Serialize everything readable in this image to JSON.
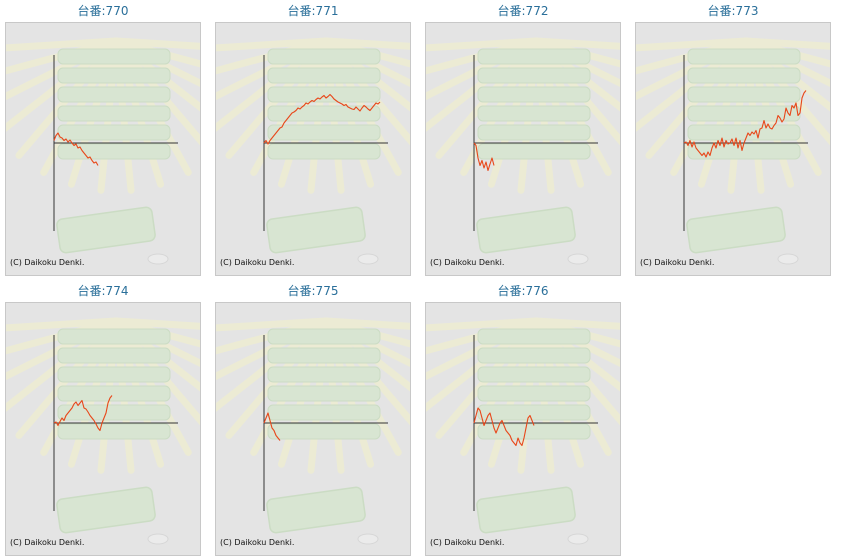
{
  "copyright": "(C) Daikoku Denki.",
  "colors": {
    "line": "#e8471a",
    "axis": "#333333",
    "title": "#2a6f9a",
    "bg": "#e4e4e4"
  },
  "chart_data": [
    {
      "type": "line",
      "title": "台番:770",
      "y": [
        0.05,
        0.15,
        0.2,
        0.12,
        0.1,
        0.05,
        0.08,
        0.02,
        0.06,
        0.0,
        -0.05,
        -0.02,
        -0.1,
        -0.08,
        -0.15,
        -0.2,
        -0.25,
        -0.3,
        -0.28,
        -0.35,
        -0.4,
        -0.38,
        -0.45
      ]
    },
    {
      "type": "line",
      "title": "台番:771",
      "y": [
        0.0,
        0.05,
        -0.02,
        0.05,
        0.1,
        0.15,
        0.2,
        0.25,
        0.3,
        0.32,
        0.4,
        0.45,
        0.5,
        0.55,
        0.6,
        0.62,
        0.65,
        0.7,
        0.68,
        0.72,
        0.75,
        0.8,
        0.78,
        0.82,
        0.85,
        0.83,
        0.87,
        0.9,
        0.88,
        0.92,
        0.95,
        0.9,
        0.93,
        0.97,
        0.93,
        0.88,
        0.85,
        0.82,
        0.8,
        0.78,
        0.75,
        0.77,
        0.72,
        0.7,
        0.68,
        0.67,
        0.72,
        0.68,
        0.64,
        0.7,
        0.75,
        0.72,
        0.68,
        0.65,
        0.7,
        0.75,
        0.8,
        0.78,
        0.82
      ]
    },
    {
      "type": "line",
      "title": "台番:772",
      "y": [
        0.0,
        -0.05,
        -0.3,
        -0.45,
        -0.35,
        -0.5,
        -0.38,
        -0.55,
        -0.42,
        -0.3,
        -0.45
      ]
    },
    {
      "type": "line",
      "title": "台番:773",
      "y": [
        0.0,
        0.02,
        -0.05,
        0.05,
        -0.08,
        0.02,
        -0.1,
        -0.15,
        -0.2,
        -0.25,
        -0.2,
        -0.28,
        -0.18,
        -0.25,
        -0.1,
        0.0,
        -0.1,
        0.05,
        -0.05,
        0.1,
        -0.08,
        0.05,
        -0.02,
        0.0,
        0.08,
        -0.05,
        0.1,
        -0.1,
        0.05,
        -0.15,
        0.0,
        0.1,
        0.2,
        0.15,
        0.22,
        0.18,
        0.25,
        0.1,
        0.28,
        0.3,
        0.45,
        0.3,
        0.38,
        0.3,
        0.28,
        0.35,
        0.4,
        0.55,
        0.5,
        0.42,
        0.48,
        0.7,
        0.6,
        0.55,
        0.75,
        0.7,
        0.8,
        0.55,
        0.6,
        0.9,
        1.0,
        1.05
      ]
    },
    {
      "type": "line",
      "title": "台番:774",
      "y": [
        0.0,
        0.02,
        -0.05,
        0.03,
        0.1,
        0.05,
        0.15,
        0.2,
        0.25,
        0.3,
        0.38,
        0.42,
        0.35,
        0.4,
        0.45,
        0.3,
        0.28,
        0.22,
        0.15,
        0.1,
        0.05,
        -0.02,
        -0.1,
        -0.15,
        0.0,
        0.1,
        0.2,
        0.4,
        0.5,
        0.55
      ]
    },
    {
      "type": "line",
      "title": "台番:775",
      "y": [
        0.0,
        0.1,
        0.2,
        0.05,
        -0.1,
        -0.15,
        -0.25,
        -0.3,
        -0.35
      ]
    },
    {
      "type": "line",
      "title": "台番:776",
      "y": [
        0.0,
        0.15,
        0.3,
        0.25,
        0.1,
        -0.05,
        0.05,
        0.15,
        0.2,
        0.05,
        -0.1,
        -0.2,
        -0.1,
        0.0,
        0.05,
        -0.05,
        -0.15,
        -0.2,
        -0.25,
        -0.35,
        -0.4,
        -0.45,
        -0.3,
        -0.4,
        -0.45,
        -0.3,
        -0.1,
        0.1,
        0.15,
        0.05,
        -0.05
      ]
    }
  ]
}
